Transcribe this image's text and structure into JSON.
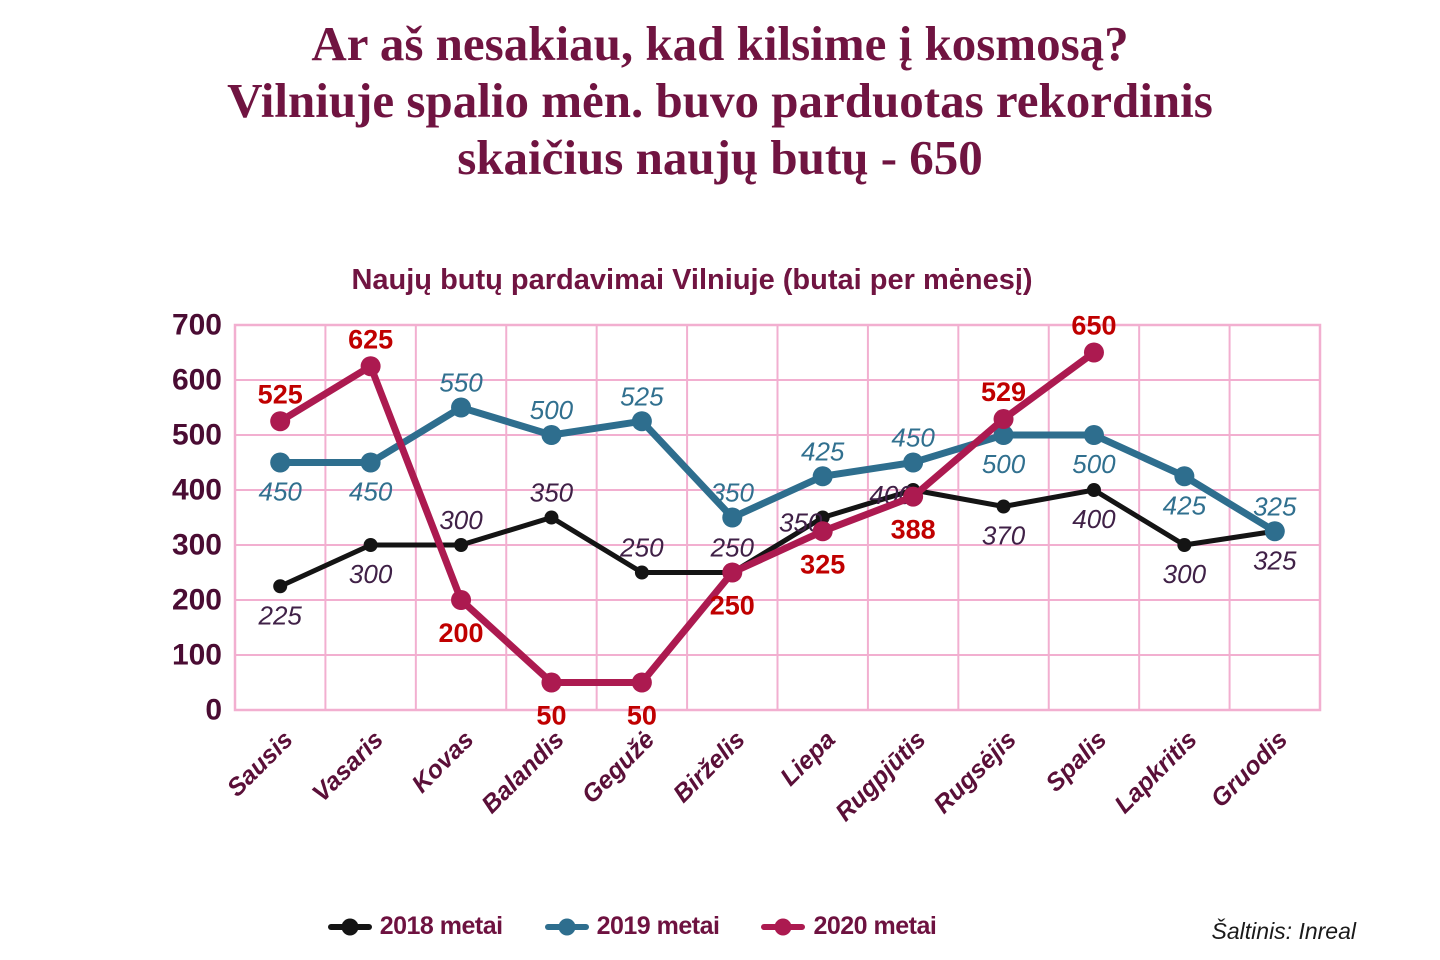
{
  "page": {
    "title_lines": [
      "Ar aš nesakiau, kad kilsime į kosmosą?",
      "Vilniuje spalio mėn. buvo parduotas rekordinis",
      "skaičius naujų butų - 650"
    ],
    "source": "Šaltinis: Inreal"
  },
  "colors": {
    "title": "#701441",
    "axis_labels": "#4A0C33",
    "month_labels": "#5A0F38",
    "grid": "#F2AFD0",
    "legend_text": "#6E1240",
    "source_text": "#1A1A1A",
    "series_2018": "#141414",
    "series_2019": "#2E6E8E",
    "series_2020": "#AC1A50",
    "labels_2020": "#C00000"
  },
  "chart_data": {
    "type": "line",
    "title": "Naujų butų pardavimai Vilniuje (butai per mėnesį)",
    "categories": [
      "Sausis",
      "Vasaris",
      "Kovas",
      "Balandis",
      "Gegužė",
      "Birželis",
      "Liepa",
      "Rugpjūtis",
      "Rugsėjis",
      "Spalis",
      "Lapkritis",
      "Gruodis"
    ],
    "ylim": [
      0,
      700
    ],
    "y_ticks": [
      0,
      100,
      200,
      300,
      400,
      500,
      600,
      700
    ],
    "grid": true,
    "legend_position": "bottom",
    "series": [
      {
        "name": "2018 metai",
        "color": "#141414",
        "label_color": "#402147",
        "label_style": "italic",
        "line_width": 5,
        "marker_radius": 7,
        "values": [
          225,
          300,
          300,
          350,
          250,
          250,
          350,
          400,
          370,
          400,
          300,
          325
        ],
        "label_placement": [
          "below",
          "below",
          "above",
          "above",
          "above",
          "above",
          "left",
          "left",
          "below",
          "below",
          "below",
          "below"
        ]
      },
      {
        "name": "2019 metai",
        "color": "#2E6E8E",
        "label_color": "#31708F",
        "label_style": "italic",
        "line_width": 7,
        "marker_radius": 10,
        "values": [
          450,
          450,
          550,
          500,
          525,
          350,
          425,
          450,
          500,
          500,
          425,
          325
        ],
        "label_placement": [
          "below",
          "below",
          "above",
          "above",
          "above",
          "above",
          "above",
          "above",
          "below",
          "below",
          "below",
          "above"
        ]
      },
      {
        "name": "2020 metai",
        "color": "#AC1A50",
        "label_color": "#C00000",
        "label_style": "bold",
        "line_width": 7,
        "marker_radius": 10,
        "values": [
          525,
          625,
          200,
          50,
          50,
          250,
          325,
          388,
          529,
          650,
          null,
          null
        ],
        "label_placement": [
          "above",
          "above",
          "below",
          "below",
          "below",
          "below",
          "below",
          "below",
          "above",
          "above",
          null,
          null
        ]
      }
    ]
  }
}
